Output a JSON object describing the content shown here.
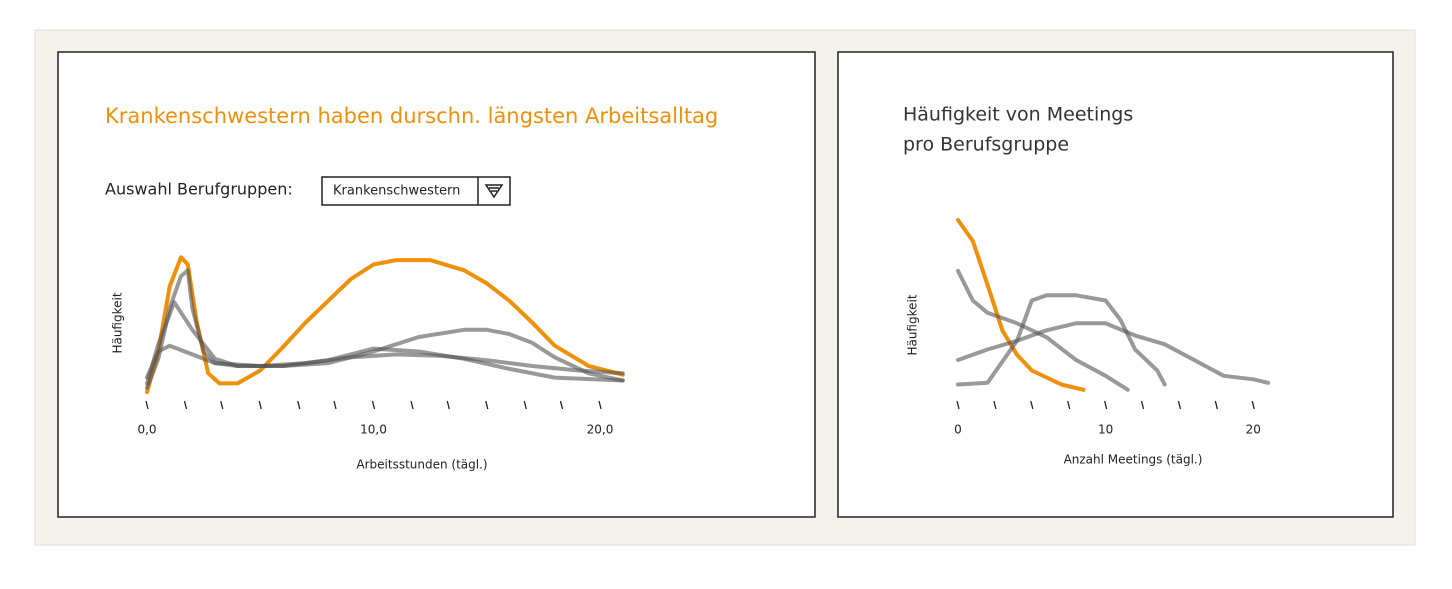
{
  "selector": {
    "label": "Auswahl Berufgruppen:",
    "selected": "Krankenschwestern"
  },
  "chart_data": [
    {
      "type": "line",
      "title": "Krankenschwestern haben durschn. längsten Arbeitsalltag",
      "x_label": "Arbeitsstunden (tägl.)",
      "y_label": "Häufigkeit",
      "xlim": [
        0,
        21.5
      ],
      "ylim": [
        0,
        1
      ],
      "xticks": [
        {
          "value": 0,
          "label": "0,0"
        },
        {
          "value": 10,
          "label": "10,0"
        },
        {
          "value": 20,
          "label": "20,0"
        }
      ],
      "minor_xticks": [
        1.7,
        3.3,
        5,
        6.7,
        8.3,
        11.7,
        13.3,
        15,
        16.7,
        18.3
      ],
      "series": [
        {
          "color": "#f0900a",
          "x": [
            0,
            0.5,
            1,
            1.5,
            1.8,
            2.2,
            2.7,
            3.2,
            4,
            5,
            6,
            7,
            8,
            9,
            10,
            11,
            12.5,
            14,
            15,
            16,
            17,
            18,
            19.5,
            21
          ],
          "values": [
            0.02,
            0.3,
            0.75,
            0.95,
            0.9,
            0.5,
            0.15,
            0.08,
            0.08,
            0.17,
            0.33,
            0.5,
            0.65,
            0.8,
            0.9,
            0.93,
            0.93,
            0.86,
            0.77,
            0.65,
            0.5,
            0.34,
            0.2,
            0.14
          ]
        },
        {
          "color": "#555555",
          "x": [
            0,
            0.5,
            1,
            1.5,
            1.8,
            2,
            2.5,
            3,
            4,
            6,
            8,
            10,
            12,
            14,
            15,
            16,
            17,
            18,
            19.5,
            21
          ],
          "values": [
            0.05,
            0.25,
            0.6,
            0.82,
            0.86,
            0.6,
            0.3,
            0.22,
            0.2,
            0.2,
            0.22,
            0.3,
            0.4,
            0.45,
            0.45,
            0.42,
            0.36,
            0.26,
            0.15,
            0.1
          ]
        },
        {
          "color": "#555555",
          "x": [
            0,
            0.5,
            1.2,
            2,
            3,
            4,
            6,
            8,
            10,
            12,
            14,
            16,
            18,
            21
          ],
          "values": [
            0.08,
            0.35,
            0.64,
            0.45,
            0.25,
            0.2,
            0.2,
            0.24,
            0.32,
            0.3,
            0.25,
            0.18,
            0.12,
            0.1
          ]
        },
        {
          "color": "#555555",
          "x": [
            0,
            0.5,
            1,
            2,
            3,
            5,
            7,
            9,
            11,
            13,
            15,
            17,
            19,
            21
          ],
          "values": [
            0.12,
            0.3,
            0.34,
            0.28,
            0.22,
            0.2,
            0.22,
            0.26,
            0.28,
            0.27,
            0.24,
            0.2,
            0.17,
            0.15
          ]
        }
      ]
    },
    {
      "type": "line",
      "title": [
        "Häufigkeit von Meetings",
        "pro Berufsgruppe"
      ],
      "x_label": "Anzahl Meetings (tägl.)",
      "y_label": "Häufigkeit",
      "xlim": [
        0,
        21
      ],
      "ylim": [
        0,
        1
      ],
      "xticks": [
        0,
        10,
        20
      ],
      "minor_xticks": [
        2.5,
        5,
        7.5,
        12.5,
        15,
        17.5
      ],
      "series": [
        {
          "color": "#f0900a",
          "x": [
            0,
            1,
            2,
            3,
            4,
            5,
            6,
            7,
            8.5
          ],
          "values": [
            1.0,
            0.88,
            0.63,
            0.37,
            0.23,
            0.14,
            0.1,
            0.06,
            0.03
          ]
        },
        {
          "color": "#555555",
          "x": [
            0,
            1,
            2,
            4,
            6,
            8,
            10,
            11.5
          ],
          "values": [
            0.71,
            0.54,
            0.47,
            0.41,
            0.33,
            0.2,
            0.11,
            0.03
          ]
        },
        {
          "color": "#555555",
          "x": [
            0,
            2,
            4,
            5,
            6,
            8,
            10,
            11,
            12,
            13.5,
            14
          ],
          "values": [
            0.06,
            0.07,
            0.31,
            0.54,
            0.57,
            0.57,
            0.54,
            0.43,
            0.26,
            0.14,
            0.06
          ]
        },
        {
          "color": "#555555",
          "x": [
            0,
            2,
            4,
            6,
            8,
            10,
            12,
            14,
            16,
            18,
            20,
            21
          ],
          "values": [
            0.2,
            0.26,
            0.31,
            0.37,
            0.41,
            0.41,
            0.34,
            0.29,
            0.2,
            0.11,
            0.09,
            0.07
          ]
        }
      ]
    }
  ]
}
